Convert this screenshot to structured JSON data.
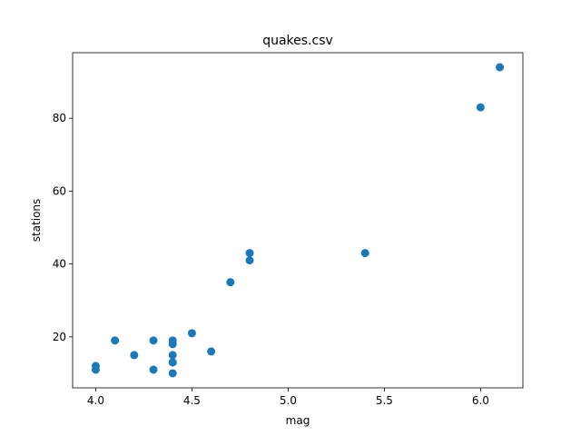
{
  "chart_data": {
    "type": "scatter",
    "title": "quakes.csv",
    "xlabel": "mag",
    "ylabel": "stations",
    "xlim": [
      3.88,
      6.22
    ],
    "ylim": [
      6,
      98
    ],
    "xticks": [
      4.0,
      4.5,
      5.0,
      5.5,
      6.0
    ],
    "xtick_labels": [
      "4.0",
      "4.5",
      "5.0",
      "5.5",
      "6.0"
    ],
    "yticks": [
      20,
      40,
      60,
      80
    ],
    "ytick_labels": [
      "20",
      "40",
      "60",
      "80"
    ],
    "grid": false,
    "point_color": "#1f77b4",
    "series": [
      {
        "points": [
          {
            "x": 4.0,
            "y": 11
          },
          {
            "x": 4.0,
            "y": 12
          },
          {
            "x": 4.1,
            "y": 19
          },
          {
            "x": 4.2,
            "y": 15
          },
          {
            "x": 4.3,
            "y": 11
          },
          {
            "x": 4.3,
            "y": 19
          },
          {
            "x": 4.4,
            "y": 10
          },
          {
            "x": 4.4,
            "y": 13
          },
          {
            "x": 4.4,
            "y": 13
          },
          {
            "x": 4.4,
            "y": 15
          },
          {
            "x": 4.4,
            "y": 18
          },
          {
            "x": 4.4,
            "y": 19
          },
          {
            "x": 4.5,
            "y": 21
          },
          {
            "x": 4.6,
            "y": 16
          },
          {
            "x": 4.7,
            "y": 35
          },
          {
            "x": 4.8,
            "y": 41
          },
          {
            "x": 4.8,
            "y": 43
          },
          {
            "x": 5.4,
            "y": 43
          },
          {
            "x": 6.0,
            "y": 83
          },
          {
            "x": 6.1,
            "y": 94
          }
        ]
      }
    ]
  }
}
